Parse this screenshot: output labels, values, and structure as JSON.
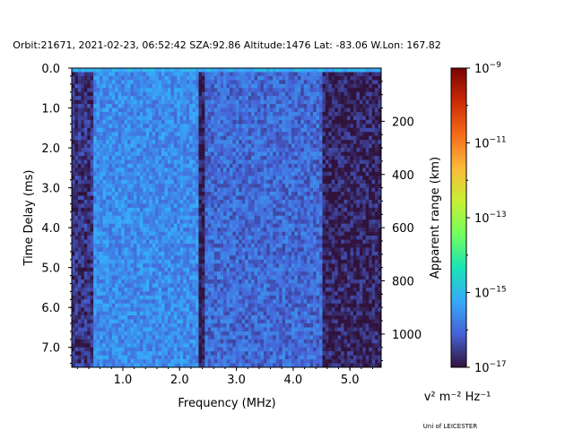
{
  "chart_data": {
    "type": "heatmap",
    "title": "Orbit:21671, 2021-02-23, 06:52:42 SZA:92.86 Altitude:1476 Lat: -83.06 W.Lon: 167.82",
    "xlabel": "Frequency (MHz)",
    "ylabel": "Time Delay (ms)",
    "y2label": "Apparent range (km)",
    "xlim": [
      0.1,
      5.55
    ],
    "ylim": [
      7.5,
      0.0
    ],
    "x_ticks": [
      1.0,
      2.0,
      3.0,
      4.0,
      5.0
    ],
    "x_tick_labels": [
      "1.0",
      "2.0",
      "3.0",
      "4.0",
      "5.0"
    ],
    "y_ticks": [
      0.0,
      1.0,
      2.0,
      3.0,
      4.0,
      5.0,
      6.0,
      7.0
    ],
    "y_tick_labels": [
      "0.0",
      "1.0",
      "2.0",
      "3.0",
      "4.0",
      "5.0",
      "6.0",
      "7.0"
    ],
    "y2_ticks_km": [
      200,
      400,
      600,
      800,
      1000
    ],
    "y2_tick_labels": [
      "200",
      "400",
      "600",
      "800",
      "1000"
    ],
    "range_per_ms": 150,
    "colorbar": {
      "scale": "log",
      "min_exp": -17,
      "max_exp": -9,
      "tick_exps": [
        -17,
        -15,
        -13,
        -11,
        -9
      ],
      "tick_labels": [
        "10",
        "10",
        "10",
        "10",
        "10"
      ],
      "tick_sups": [
        "−17",
        "−15",
        "−13",
        "−11",
        "−9"
      ],
      "colormap_stops": [
        "#30123b",
        "#4662d7",
        "#36aaf9",
        "#1ae4b6",
        "#72fe5e",
        "#c8ef34",
        "#faba39",
        "#f66b19",
        "#ca2a04",
        "#7a0403"
      ],
      "units": "v² m⁻² Hz⁻¹"
    },
    "series_description": [
      {
        "freq_range_mhz": [
          0.1,
          0.5
        ],
        "level_exp": -16.6
      },
      {
        "freq_range_mhz": [
          0.5,
          2.35
        ],
        "level_exp": -15.6
      },
      {
        "freq_range_mhz": [
          2.35,
          2.45
        ],
        "level_exp": -16.9
      },
      {
        "freq_range_mhz": [
          2.45,
          4.5
        ],
        "level_exp": -16.0
      },
      {
        "freq_range_mhz": [
          4.5,
          5.55
        ],
        "level_exp": -16.8
      }
    ],
    "top_row_level_exp": -15.2
  },
  "footer": {
    "credit": "Uni of LEICESTER"
  }
}
